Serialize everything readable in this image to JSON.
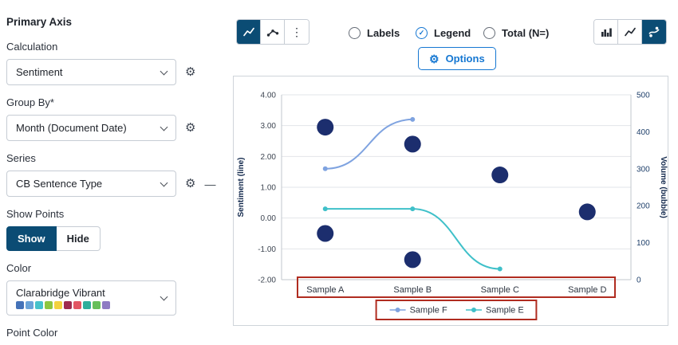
{
  "icons": {
    "gear": "⚙",
    "more_vertical": "⋮",
    "check": "✓",
    "remove": "—"
  },
  "panel": {
    "title": "Primary Axis",
    "calculation": {
      "label": "Calculation",
      "value": "Sentiment"
    },
    "group_by": {
      "label": "Group By*",
      "value": "Month (Document Date)"
    },
    "series": {
      "label": "Series",
      "value": "CB Sentence Type"
    },
    "show_points": {
      "label": "Show Points",
      "options": [
        "Show",
        "Hide"
      ],
      "selected": "Show"
    },
    "color": {
      "label": "Color",
      "value": "Clarabridge Vibrant",
      "swatches": [
        "#4472b8",
        "#6aa3d8",
        "#45c2cb",
        "#8cc63f",
        "#f2d13e",
        "#9e2b4f",
        "#e25563",
        "#2fae9b",
        "#66bf5a",
        "#8e7cc3"
      ]
    },
    "point_color": {
      "label": "Point Color"
    }
  },
  "toolbar": {
    "left_group": [
      {
        "name": "line-chart",
        "selected": true
      },
      {
        "name": "line-chart-with-points",
        "selected": false
      },
      {
        "name": "more-menu",
        "selected": false
      }
    ],
    "radios": [
      {
        "label": "Labels",
        "checked": false
      },
      {
        "label": "Legend",
        "checked": true
      },
      {
        "label": "Total (N=)",
        "checked": false
      }
    ],
    "options_button": "Options",
    "right_group": [
      {
        "name": "bar-chart",
        "selected": false
      },
      {
        "name": "line-chart",
        "selected": false
      },
      {
        "name": "combo-chart",
        "selected": true
      }
    ]
  },
  "colors": {
    "selected_navy": "#0b4c74",
    "accent_blue": "#1577d2",
    "annotation_red": "#b02c20"
  },
  "chart_data": {
    "type": "combo",
    "categories": [
      "Sample A",
      "Sample B",
      "Sample C",
      "Sample D"
    ],
    "left_axis": {
      "label": "Sentiment (line)",
      "min": -2,
      "max": 4,
      "ticks": [
        4,
        3,
        2,
        1,
        0,
        -1,
        -2
      ]
    },
    "right_axis": {
      "label": "Volume (bubble)",
      "min": 0,
      "max": 500,
      "ticks": [
        500,
        400,
        300,
        200,
        100,
        0
      ]
    },
    "series": [
      {
        "name": "Sample F",
        "type": "line",
        "color": "#7fa3e0",
        "points": [
          {
            "category": "Sample A",
            "value": 1.6
          },
          {
            "category": "Sample B",
            "value": 3.2
          }
        ]
      },
      {
        "name": "Sample E",
        "type": "line",
        "color": "#3fc0c9",
        "points": [
          {
            "category": "Sample A",
            "value": 0.3
          },
          {
            "category": "Sample B",
            "value": 0.3
          },
          {
            "category": "Sample C",
            "value": -1.65
          }
        ]
      }
    ],
    "bubbles": {
      "color": "#1c2e6e",
      "radius": 10.5,
      "points": [
        {
          "category": "Sample A",
          "value": 2.95
        },
        {
          "category": "Sample A",
          "value": -0.5
        },
        {
          "category": "Sample B",
          "value": 2.4
        },
        {
          "category": "Sample B",
          "value": -1.35
        },
        {
          "category": "Sample C",
          "value": 1.4
        },
        {
          "category": "Sample D",
          "value": 0.2
        }
      ]
    },
    "legend": [
      {
        "label": "Sample F",
        "color": "#7fa3e0"
      },
      {
        "label": "Sample E",
        "color": "#3fc0c9"
      }
    ],
    "legend_position": "bottom",
    "grid": true,
    "highlights": {
      "color": "#b02c20",
      "x_axis_labels": true,
      "legend": true
    }
  }
}
